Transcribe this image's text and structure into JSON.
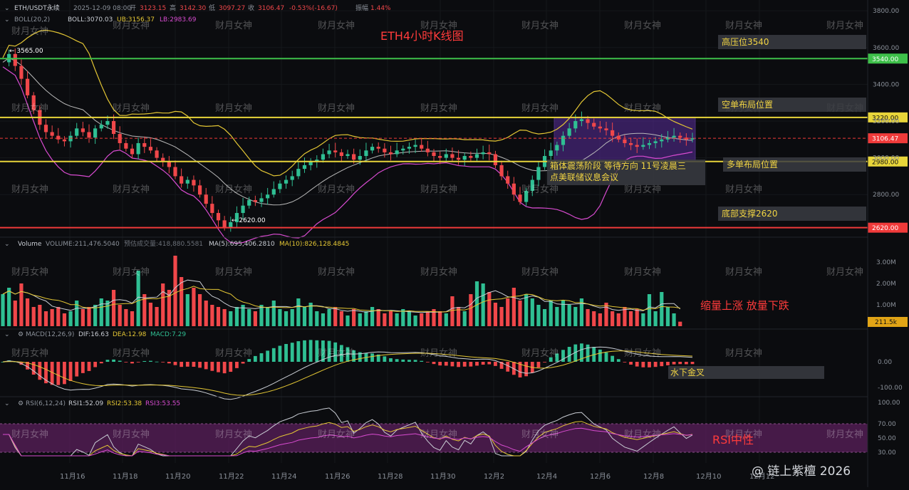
{
  "header": {
    "symbol": "ETH/USDT永续",
    "datetime": "2025-12-09 08:00",
    "open_label": "开",
    "open": "3123.15",
    "high_label": "高",
    "high": "3142.30",
    "low_label": "低",
    "low": "3097.27",
    "close_label": "收",
    "close": "3106.47",
    "change": "-0.53%(-16.67)",
    "amp_label": "振幅",
    "amp": "1.44%"
  },
  "boll_legend": {
    "name": "BOLL(20,2)",
    "boll": "BOLL:3070.03",
    "ub": "UB:3156.37",
    "lb": "LB:2983.69"
  },
  "volume_legend": {
    "name": "Volume",
    "volume": "VOLUME:211,476.5040",
    "forecast": "预估成交量:418,880.5581",
    "ma5": "MA(5):695,406.2810",
    "ma10": "MA(10):826,128.4845"
  },
  "macd_legend": {
    "name": "MACD(12,26,9)",
    "dif": "DIF:16.63",
    "dea": "DEA:12.98",
    "macd": "MACD:7.29"
  },
  "rsi_legend": {
    "name": "RSI(6,12,24)",
    "rsi1": "RSI1:52.09",
    "rsi2": "RSI2:53.38",
    "rsi3": "RSI3:53.55"
  },
  "annotations": {
    "title": "ETH4小时K线图",
    "resistance": "高压位3540",
    "short_pos": "空单布局位置",
    "long_pos": "多单布局位置",
    "support": "底部支撑2620",
    "box_note_1": "箱体震荡阶段 等待方向 11号凌晨三",
    "box_note_2": "点美联储议息会议",
    "volume_note": "缩量上涨 放量下跌",
    "macd_note": "水下金叉",
    "rsi_note": "RSI中性",
    "watermark_text": "财月女神",
    "brand": "@ 链上紫檀 2026",
    "high_mark": "3565.00",
    "low_mark": "2620.00"
  },
  "colors": {
    "up": "#2fbf93",
    "down": "#f0474a",
    "boll_mid": "#b9b9b9",
    "boll_ub": "#e3c634",
    "boll_lb": "#d84bd0",
    "green_line": "#3ec04a",
    "yellow_line": "#e8d53a",
    "red_line": "#f03a3a",
    "box_fill": "#5a2d9c",
    "rsi_band": "#5b1f5c"
  },
  "chart_data": {
    "type": "candlestick",
    "x_axis_labels": [
      "11月16",
      "11月18",
      "11月20",
      "11月22",
      "11月24",
      "11月26",
      "11月28",
      "11月30",
      "12月2",
      "12月4",
      "12月6",
      "12月8",
      "12月10",
      "12月12"
    ],
    "price_axis_ticks": [
      3800,
      3600,
      3400,
      3200,
      3000,
      2800
    ],
    "price_levels": [
      {
        "label": "3540.00",
        "value": 3540,
        "color": "#3ec04a"
      },
      {
        "label": "3220.00",
        "value": 3220,
        "color": "#e8d53a"
      },
      {
        "label": "3106.47",
        "value": 3106.47,
        "color": "#f03a3a"
      },
      {
        "label": "2980.00",
        "value": 2980,
        "color": "#e8d53a"
      },
      {
        "label": "2620.00",
        "value": 2620,
        "color": "#f03a3a"
      }
    ],
    "volume_axis_ticks": [
      "3.00M",
      "2.00M",
      "1.00M"
    ],
    "volume_current": "211.5k",
    "macd_axis_ticks": [
      "0.00",
      "-100.00"
    ],
    "rsi_axis_ticks": [
      "100.00",
      "70.00",
      "50.00",
      "30.00"
    ],
    "price_path": [
      3520,
      3565,
      3500,
      3430,
      3340,
      3260,
      3180,
      3140,
      3120,
      3100,
      3090,
      3120,
      3160,
      3140,
      3110,
      3160,
      3180,
      3200,
      3130,
      3080,
      3050,
      3020,
      3080,
      3060,
      3040,
      3000,
      2980,
      2950,
      2900,
      2860,
      2880,
      2850,
      2800,
      2750,
      2700,
      2660,
      2620,
      2650,
      2700,
      2740,
      2770,
      2760,
      2780,
      2800,
      2830,
      2860,
      2880,
      2900,
      2940,
      2960,
      2980,
      2990,
      3020,
      3040,
      3030,
      3010,
      3020,
      2990,
      3010,
      3040,
      3060,
      3050,
      3030,
      3020,
      3040,
      3050,
      3060,
      3070,
      3050,
      3030,
      3010,
      3000,
      3020,
      3000,
      2990,
      3010,
      3000,
      3020,
      3030,
      3020,
      2960,
      2900,
      2860,
      2800,
      2760,
      2820,
      2880,
      2950,
      3010,
      3040,
      3070,
      3120,
      3160,
      3200,
      3210,
      3190,
      3170,
      3160,
      3150,
      3120,
      3100,
      3080,
      3070,
      3060,
      3070,
      3080,
      3090,
      3100,
      3110,
      3120,
      3110,
      3100,
      3106.47
    ],
    "volume_path_k": [
      1500,
      1800,
      1200,
      2000,
      1300,
      900,
      1000,
      700,
      800,
      900,
      600,
      700,
      1200,
      800,
      900,
      1000,
      1300,
      1200,
      1700,
      1000,
      800,
      700,
      2600,
      1500,
      1100,
      900,
      2000,
      1700,
      3300,
      2300,
      1500,
      1800,
      1500,
      1200,
      1000,
      900,
      800,
      700,
      900,
      1000,
      800,
      700,
      1000,
      900,
      1200,
      800,
      700,
      800,
      1300,
      900,
      1100,
      700,
      600,
      800,
      900,
      700,
      500,
      800,
      600,
      700,
      900,
      800,
      600,
      700,
      600,
      800,
      700,
      500,
      600,
      700,
      800,
      700,
      600,
      1400,
      900,
      700,
      1500,
      2100,
      2000,
      1600,
      1100,
      900,
      1300,
      1800,
      1200,
      1500,
      1300,
      1000,
      800,
      1200,
      900,
      1200,
      1000,
      900,
      1300,
      800,
      700,
      600,
      1100,
      700,
      600,
      900,
      700,
      800,
      600,
      1500,
      700,
      1600,
      900,
      600,
      211
    ]
  }
}
